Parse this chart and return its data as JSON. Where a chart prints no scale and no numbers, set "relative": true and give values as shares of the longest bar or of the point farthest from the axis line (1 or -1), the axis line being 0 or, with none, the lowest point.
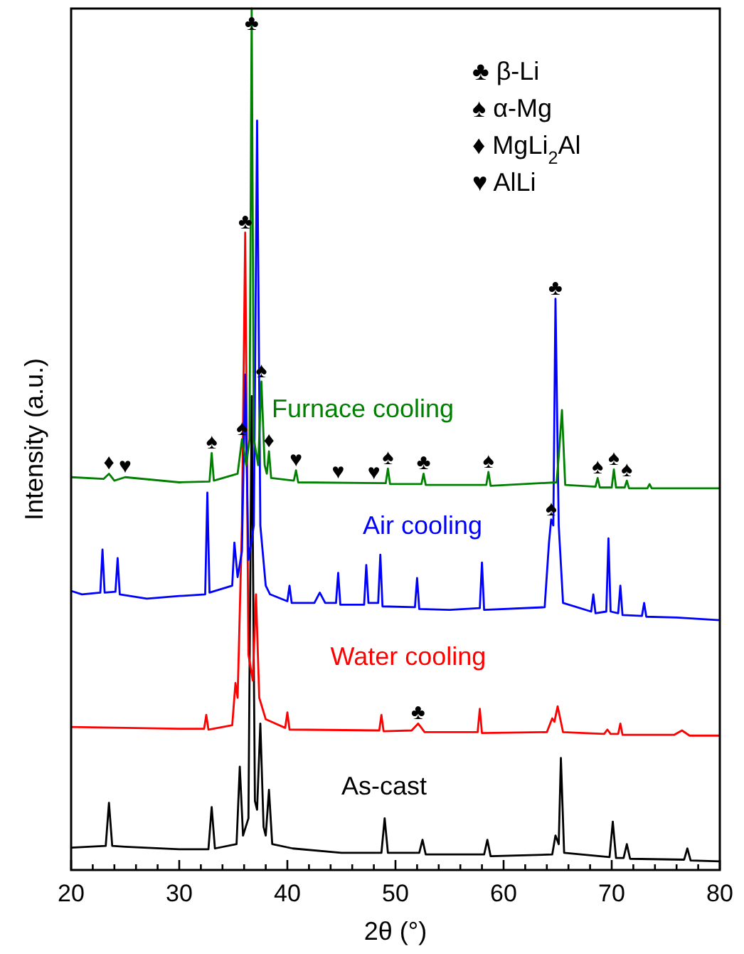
{
  "chart_data": {
    "type": "line",
    "relative": true,
    "xlabel": "2θ (°)",
    "ylabel": "Intensity (a.u.)",
    "xlim": [
      20,
      80
    ],
    "xticks": [
      20,
      {
        "value": 22,
        "label": null
      },
      {
        "value": 24,
        "label": null
      },
      {
        "value": 26,
        "label": null
      },
      {
        "value": 28,
        "label": null
      },
      30,
      {
        "value": 32,
        "label": null
      },
      {
        "value": 34,
        "label": null
      },
      {
        "value": 36,
        "label": null
      },
      {
        "value": 38,
        "label": null
      },
      40,
      {
        "value": 42,
        "label": null
      },
      {
        "value": 44,
        "label": null
      },
      {
        "value": 46,
        "label": null
      },
      {
        "value": 48,
        "label": null
      },
      50,
      {
        "value": 52,
        "label": null
      },
      {
        "value": 54,
        "label": null
      },
      {
        "value": 56,
        "label": null
      },
      {
        "value": 58,
        "label": null
      },
      60,
      {
        "value": 62,
        "label": null
      },
      {
        "value": 64,
        "label": null
      },
      {
        "value": 66,
        "label": null
      },
      {
        "value": 68,
        "label": null
      },
      70,
      {
        "value": 72,
        "label": null
      },
      {
        "value": 74,
        "label": null
      },
      {
        "value": 76,
        "label": null
      },
      {
        "value": 78,
        "label": null
      },
      80
    ],
    "tick_labels": "x",
    "grid": false,
    "legend": false,
    "line_style": "solid",
    "marker": "none",
    "series": [
      {
        "name": "As-cast",
        "color": "#000000",
        "x": [
          20,
          23.2,
          23.5,
          23.8,
          25,
          30,
          32.7,
          33,
          33.3,
          35.3,
          35.6,
          35.9,
          36.4,
          36.7,
          37.0,
          37.2,
          37.5,
          37.8,
          38.0,
          38.3,
          38.6,
          40.5,
          45,
          48.7,
          49,
          49.3,
          52.2,
          52.5,
          52.8,
          58.2,
          58.5,
          58.8,
          64.5,
          64.8,
          65.1,
          65.3,
          65.6,
          69.8,
          70.1,
          70.4,
          71.1,
          71.4,
          71.7,
          76.7,
          77,
          77.3,
          80
        ],
        "values": [
          0.026,
          0.028,
          0.078,
          0.028,
          0.027,
          0.024,
          0.024,
          0.073,
          0.025,
          0.03,
          0.12,
          0.04,
          0.06,
          0.55,
          0.08,
          0.07,
          0.17,
          0.05,
          0.04,
          0.093,
          0.03,
          0.025,
          0.02,
          0.02,
          0.06,
          0.02,
          0.02,
          0.035,
          0.018,
          0.018,
          0.035,
          0.016,
          0.018,
          0.04,
          0.03,
          0.13,
          0.02,
          0.015,
          0.056,
          0.014,
          0.014,
          0.03,
          0.013,
          0.012,
          0.025,
          0.011,
          0.01
        ]
      },
      {
        "name": "Water cooling",
        "color": "#ff0000",
        "x": [
          20,
          30,
          32.3,
          32.5,
          32.7,
          34.9,
          35.2,
          35.4,
          35.8,
          36.1,
          36.4,
          36.8,
          37.1,
          37.4,
          38,
          39.8,
          40.0,
          40.2,
          48.5,
          48.7,
          48.9,
          51.5,
          52.1,
          52.7,
          57.6,
          57.8,
          58.0,
          64.0,
          64.5,
          64.7,
          65.0,
          65.5,
          69.3,
          69.6,
          69.9,
          70.6,
          70.8,
          71.0,
          75.8,
          76.5,
          77.2,
          80
        ],
        "values": [
          0.166,
          0.164,
          0.164,
          0.18,
          0.163,
          0.168,
          0.217,
          0.2,
          0.4,
          0.74,
          0.25,
          0.22,
          0.32,
          0.2,
          0.175,
          0.165,
          0.183,
          0.163,
          0.162,
          0.18,
          0.161,
          0.162,
          0.17,
          0.16,
          0.16,
          0.187,
          0.159,
          0.16,
          0.176,
          0.172,
          0.19,
          0.16,
          0.158,
          0.163,
          0.158,
          0.158,
          0.17,
          0.157,
          0.157,
          0.162,
          0.156,
          0.156
        ]
      },
      {
        "name": "Air cooling",
        "color": "#0000ff",
        "x": [
          20,
          21,
          22.7,
          22.9,
          23.1,
          24.1,
          24.3,
          24.5,
          27,
          30,
          32.4,
          32.6,
          32.8,
          34.9,
          35.1,
          35.4,
          35.8,
          36.1,
          36.4,
          36.9,
          37.2,
          37.5,
          38,
          38.4,
          40,
          40.2,
          40.4,
          42.5,
          43,
          43.5,
          44.5,
          44.7,
          44.9,
          47.1,
          47.3,
          47.5,
          48.4,
          48.6,
          48.8,
          51.8,
          52,
          52.2,
          55,
          57.8,
          58,
          58.2,
          63.8,
          64.2,
          64.4,
          64.6,
          64.8,
          65.1,
          65.5,
          68.1,
          68.3,
          68.5,
          69.5,
          69.7,
          69.9,
          70.6,
          70.8,
          71.0,
          72.8,
          73,
          73.2,
          76,
          80
        ],
        "values": [
          0.324,
          0.32,
          0.322,
          0.372,
          0.322,
          0.323,
          0.362,
          0.32,
          0.315,
          0.318,
          0.32,
          0.438,
          0.322,
          0.33,
          0.38,
          0.34,
          0.37,
          0.575,
          0.36,
          0.4,
          0.87,
          0.4,
          0.33,
          0.32,
          0.312,
          0.33,
          0.31,
          0.31,
          0.322,
          0.31,
          0.31,
          0.345,
          0.308,
          0.308,
          0.354,
          0.31,
          0.31,
          0.366,
          0.306,
          0.305,
          0.339,
          0.303,
          0.302,
          0.304,
          0.357,
          0.302,
          0.305,
          0.38,
          0.407,
          0.4,
          0.663,
          0.4,
          0.31,
          0.3,
          0.32,
          0.298,
          0.3,
          0.385,
          0.3,
          0.298,
          0.33,
          0.296,
          0.295,
          0.31,
          0.294,
          0.293,
          0.29
        ]
      },
      {
        "name": "Furnace cooling",
        "color": "#008000",
        "x": [
          20,
          23,
          23.5,
          24,
          25,
          30,
          32.8,
          33.0,
          33.2,
          35.4,
          35.8,
          36.2,
          36.5,
          36.7,
          36.9,
          37.3,
          37.6,
          37.9,
          38.1,
          38.3,
          38.5,
          40.6,
          40.8,
          41,
          49.1,
          49.3,
          49.5,
          52.4,
          52.6,
          52.8,
          58.4,
          58.6,
          58.8,
          64.9,
          65.1,
          65.4,
          65.7,
          68.5,
          68.7,
          68.9,
          70.0,
          70.2,
          70.4,
          71.2,
          71.4,
          71.6,
          73.3,
          73.5,
          73.7,
          80
        ],
        "values": [
          0.456,
          0.454,
          0.46,
          0.452,
          0.456,
          0.45,
          0.451,
          0.484,
          0.452,
          0.46,
          0.5,
          0.47,
          0.5,
          1,
          0.5,
          0.47,
          0.567,
          0.47,
          0.46,
          0.486,
          0.455,
          0.452,
          0.464,
          0.45,
          0.449,
          0.466,
          0.448,
          0.448,
          0.46,
          0.447,
          0.447,
          0.462,
          0.446,
          0.45,
          0.48,
          0.534,
          0.447,
          0.445,
          0.455,
          0.444,
          0.444,
          0.465,
          0.444,
          0.444,
          0.452,
          0.443,
          0.443,
          0.448,
          0.443,
          0.443
        ]
      }
    ],
    "annotations": [
      "♣ β-Li",
      "♠ α-Mg",
      "♦ MgLi$_{2}$Al",
      "♥ AlLi",
      {
        "text": "♣",
        "x": 36.7,
        "y": 0.97
      },
      {
        "text": "♣",
        "x": 36.1,
        "y": 0.74
      },
      {
        "text": "♣",
        "x": 64.8,
        "y": 0.663
      },
      {
        "text": "♠",
        "x": 37.6,
        "y": 0.567
      },
      {
        "text": "♠",
        "x": 35.8,
        "y": 0.5
      },
      {
        "text": "♠",
        "x": 33.0,
        "y": 0.484
      },
      {
        "text": "♦",
        "x": 38.3,
        "y": 0.486
      },
      {
        "text": "♦",
        "x": 23.5,
        "y": 0.46
      },
      {
        "text": "♥",
        "x": 25,
        "y": 0.456
      },
      {
        "text": "♥",
        "x": 40.8,
        "y": 0.464
      },
      {
        "text": "♥",
        "x": 44.7,
        "y": 0.45
      },
      {
        "text": "♥",
        "x": 48,
        "y": 0.449
      },
      {
        "text": "♠",
        "x": 49.3,
        "y": 0.466
      },
      {
        "text": "♣",
        "x": 52.6,
        "y": 0.46
      },
      {
        "text": "♠",
        "x": 58.6,
        "y": 0.462
      },
      {
        "text": "♠",
        "x": 68.7,
        "y": 0.455
      },
      {
        "text": "♠",
        "x": 70.2,
        "y": 0.465
      },
      {
        "text": "♠",
        "x": 71.4,
        "y": 0.452
      },
      {
        "text": "♠",
        "x": 64.4,
        "y": 0.407
      },
      {
        "text": "♣",
        "x": 52.1,
        "y": 0.17
      }
    ]
  }
}
